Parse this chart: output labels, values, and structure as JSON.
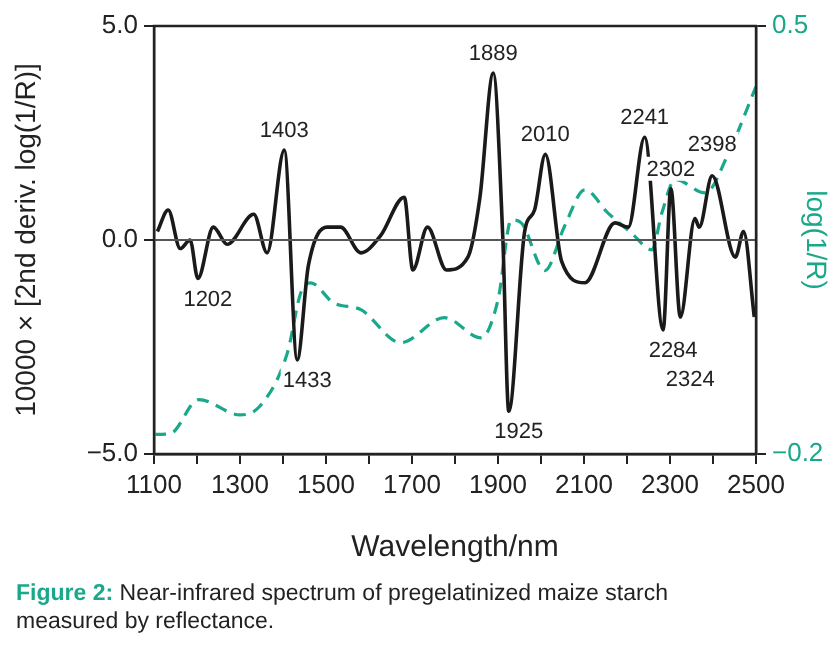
{
  "chart_data": {
    "type": "line",
    "xlabel": "Wavelength/nm",
    "ylabel": "10000 × [2nd deriv. log(1/R)]",
    "y2label": "log(1/R)",
    "xlim": [
      1100,
      2500
    ],
    "xticks": [
      1100,
      {
        "value": 1200,
        "label": null
      },
      1300,
      {
        "value": 1400,
        "label": null
      },
      1500,
      {
        "value": 1600,
        "label": null
      },
      1700,
      {
        "value": 1800,
        "label": null
      },
      1900,
      {
        "value": 2000,
        "label": null
      },
      2100,
      {
        "value": 2200,
        "label": null
      },
      2300,
      {
        "value": 2400,
        "label": null
      },
      2500
    ],
    "ylim": [
      -5,
      5
    ],
    "yticks": [
      {
        "value": -5,
        "label": "−5.0"
      },
      {
        "value": 0,
        "label": "0.0"
      },
      {
        "value": 5,
        "label": "5.0"
      }
    ],
    "y2lim": [
      -0.2,
      0.5
    ],
    "y2ticks": [
      {
        "value": -0.2,
        "label": "−0.2"
      },
      {
        "value": 0.5,
        "label": "0.5"
      }
    ],
    "grid": false,
    "legend": false,
    "marker": "none",
    "series": [
      {
        "color": "#1a1a1a",
        "line_style": "solid",
        "x": [
          1108,
          1133,
          1161,
          1184,
          1202,
          1238,
          1270,
          1332,
          1363,
          1403,
          1433,
          1459,
          1503,
          1534,
          1581,
          1627,
          1682,
          1702,
          1736,
          1780,
          1830,
          1858,
          1889,
          1911,
          1925,
          1962,
          1985,
          2010,
          2048,
          2102,
          2172,
          2203,
          2241,
          2284,
          2302,
          2324,
          2358,
          2368,
          2398,
          2452,
          2471,
          2496
        ],
        "values": [
          0.2,
          0.7,
          -0.2,
          0,
          -0.9,
          0.3,
          -0.1,
          0.6,
          -0.3,
          2.1,
          -2.8,
          -0.6,
          0.3,
          0.3,
          -0.3,
          0.1,
          1.0,
          -0.7,
          0.3,
          -0.7,
          -0.4,
          1.0,
          3.9,
          0.1,
          -4.0,
          0.2,
          0.7,
          2.0,
          -0.5,
          -1.0,
          0.4,
          0.3,
          2.4,
          -2.1,
          1.2,
          -1.8,
          0.5,
          0.3,
          1.5,
          -0.4,
          0.2,
          -1.8
        ]
      },
      {
        "color": "#1aa88a",
        "line_style": "dashed",
        "axis": "y2",
        "x": [
          1100,
          1137,
          1204,
          1300,
          1347,
          1410,
          1441,
          1464,
          1518,
          1581,
          1674,
          1775,
          1861,
          1900,
          1931,
          1954,
          2009,
          2055,
          2102,
          2156,
          2211,
          2258,
          2281,
          2312,
          2382,
          2436,
          2500
        ],
        "values": [
          -0.168,
          -0.167,
          -0.111,
          -0.136,
          -0.121,
          -0.035,
          0.063,
          0.08,
          0.047,
          0.036,
          -0.018,
          0.023,
          -0.01,
          0.052,
          0.183,
          0.178,
          0.1,
          0.173,
          0.232,
          0.194,
          0.161,
          0.134,
          0.194,
          0.249,
          0.227,
          0.292,
          0.401
        ]
      }
    ],
    "ref_lines": [
      {
        "axis": "y",
        "value": 0,
        "color": "#555555"
      }
    ],
    "annotations": [
      {
        "text": "1403",
        "x": 1403,
        "y": 2.1
      },
      {
        "text": "1889",
        "x": 1889,
        "y": 3.9
      },
      {
        "text": "2010",
        "x": 2010,
        "y": 2.0
      },
      {
        "text": "2241",
        "x": 2241,
        "y": 2.4
      },
      {
        "text": "2302",
        "x": 2302,
        "y": 1.2
      },
      {
        "text": "2398",
        "x": 2398,
        "y": 1.5
      },
      {
        "text": "1202",
        "x": 1202,
        "y": -0.9
      },
      {
        "text": "1433",
        "x": 1433,
        "y": -2.8
      },
      {
        "text": "1925",
        "x": 1925,
        "y": -4.0
      },
      {
        "text": "2284",
        "x": 2284,
        "y": -2.1
      },
      {
        "text": "2324",
        "x": 2324,
        "y": -1.8
      },
      "Figure 2: Near-infrared spectrum of pregelatinized maize starch measured by reflectance."
    ]
  }
}
